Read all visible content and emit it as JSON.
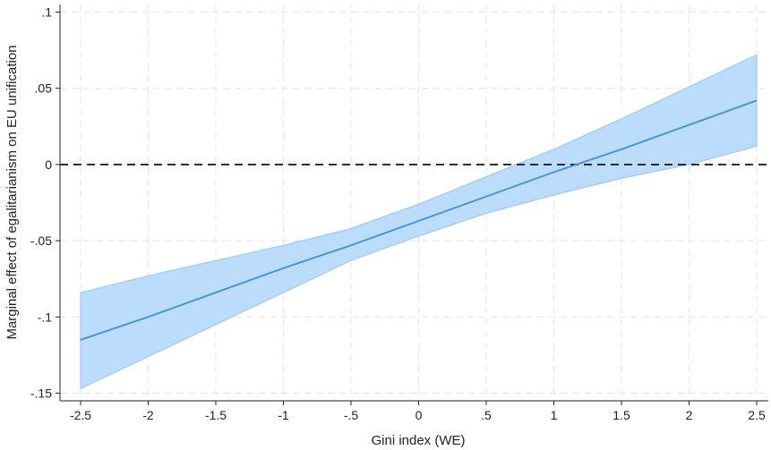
{
  "chart_data": {
    "type": "line",
    "xlabel": "Gini index (WE)",
    "ylabel": "Marginal effect of egalitarianism on EU unification",
    "xlim": [
      -2.5,
      2.5
    ],
    "ylim": [
      -0.155,
      0.105
    ],
    "x_ticks": [
      {
        "value": -2.5,
        "label": "-2.5"
      },
      {
        "value": -2,
        "label": "-2"
      },
      {
        "value": -1.5,
        "label": "-1.5"
      },
      {
        "value": -1,
        "label": "-1"
      },
      {
        "value": -0.5,
        "label": "-.5"
      },
      {
        "value": 0,
        "label": "0"
      },
      {
        "value": 0.5,
        "label": ".5"
      },
      {
        "value": 1,
        "label": "1"
      },
      {
        "value": 1.5,
        "label": "1.5"
      },
      {
        "value": 2,
        "label": "2"
      },
      {
        "value": 2.5,
        "label": "2.5"
      }
    ],
    "y_ticks": [
      {
        "value": 0.1,
        "label": ".1"
      },
      {
        "value": 0.05,
        "label": ".05"
      },
      {
        "value": 0,
        "label": "0"
      },
      {
        "value": -0.05,
        "label": "-.05"
      },
      {
        "value": -0.1,
        "label": "-.1"
      },
      {
        "value": -0.15,
        "label": "-.15"
      }
    ],
    "grid": true,
    "reference_line": {
      "y": 0,
      "style": "dashed",
      "color": "#000000"
    },
    "series": [
      {
        "x": [
          -2.5,
          -2,
          -1.5,
          -1,
          -0.5,
          0,
          0.5,
          1,
          1.5,
          2,
          2.5
        ],
        "y": [
          -0.115,
          -0.1,
          -0.084,
          -0.068,
          -0.053,
          -0.037,
          -0.021,
          -0.005,
          0.01,
          0.026,
          0.042
        ],
        "lower": [
          -0.147,
          -0.126,
          -0.105,
          -0.084,
          -0.063,
          -0.047,
          -0.032,
          -0.02,
          -0.009,
          0.0,
          0.012
        ],
        "upper": [
          -0.084,
          -0.073,
          -0.063,
          -0.053,
          -0.042,
          -0.026,
          -0.008,
          0.01,
          0.03,
          0.051,
          0.072
        ],
        "line_color": "#3c8fd9",
        "band_color": "#bcdcfb",
        "band_edge_color": "#9fc9f1"
      }
    ]
  }
}
